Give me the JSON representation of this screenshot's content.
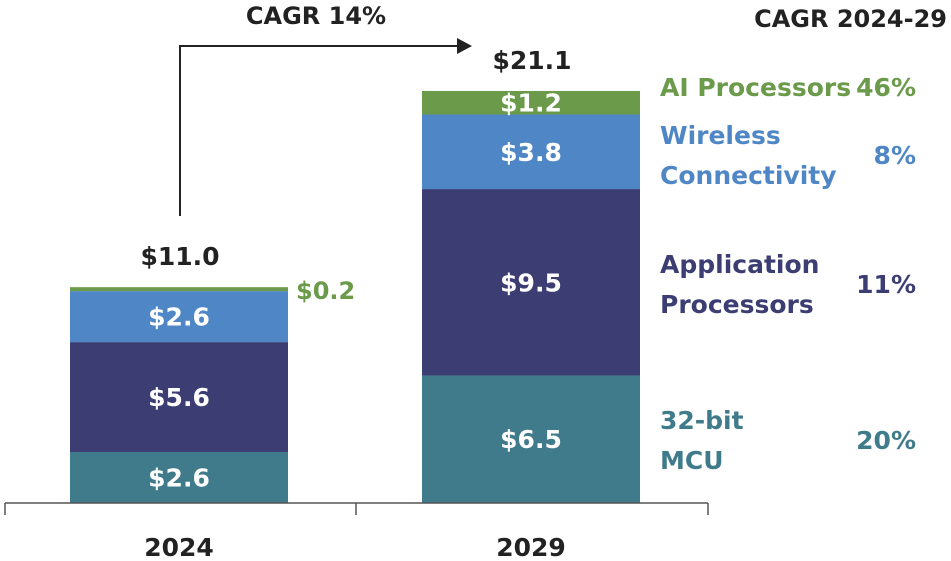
{
  "chart_data": {
    "type": "bar",
    "stacked": true,
    "categories": [
      "2024",
      "2029"
    ],
    "series": [
      {
        "name": "32-bit MCU",
        "values": [
          2.6,
          6.5
        ],
        "labels": [
          "$2.6",
          "$6.5"
        ],
        "color": "#3f7b8a",
        "cagr": "20%"
      },
      {
        "name": "Application Processors",
        "values": [
          5.6,
          9.5
        ],
        "labels": [
          "$5.6",
          "$9.5"
        ],
        "color": "#3c3e73",
        "cagr": "11%"
      },
      {
        "name": "Wireless Connectivity",
        "values": [
          2.6,
          3.8
        ],
        "labels": [
          "$2.6",
          "$3.8"
        ],
        "color": "#4f86c6",
        "cagr": "8%"
      },
      {
        "name": "AI Processors",
        "values": [
          0.2,
          1.2
        ],
        "labels": [
          "$0.2",
          "$1.2"
        ],
        "color": "#6a9a4a",
        "cagr": "46%"
      }
    ],
    "totals": [
      "$11.0",
      "$21.1"
    ],
    "ylim": [
      0,
      21.1
    ],
    "cagr_overall": "CAGR 14%",
    "cagr_header": "CAGR 2024-29",
    "legend": [
      {
        "lines": [
          "AI Processors"
        ],
        "cagr": "46%",
        "color": "#6a9a4a"
      },
      {
        "lines": [
          "Wireless",
          "Connectivity"
        ],
        "cagr": "8%",
        "color": "#4f86c6"
      },
      {
        "lines": [
          "Application",
          "Processors"
        ],
        "cagr": "11%",
        "color": "#3c3e73"
      },
      {
        "lines": [
          "32-bit",
          "MCU"
        ],
        "cagr": "20%",
        "color": "#3f7b8a"
      }
    ]
  }
}
